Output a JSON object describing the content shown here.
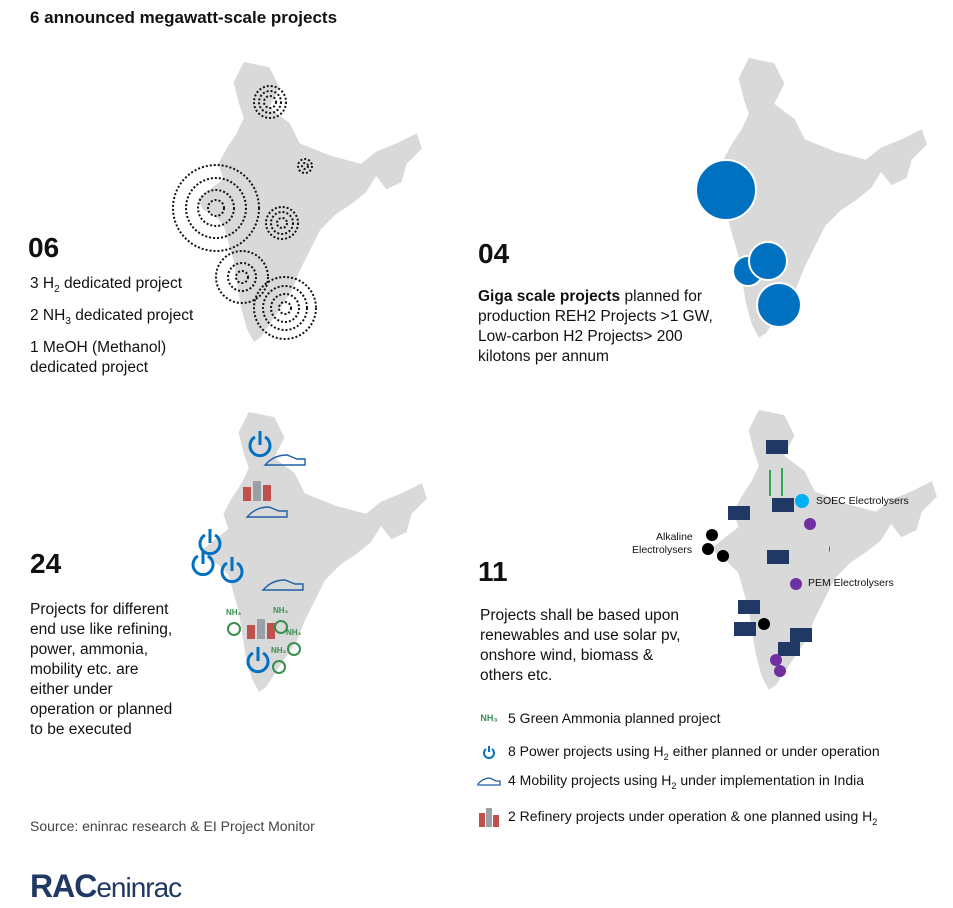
{
  "title": "6 announced megawatt-scale projects",
  "q1": {
    "count": "06",
    "line1_pre": "3 H",
    "line1_sub": "2",
    "line1_post": " dedicated project",
    "line2_pre": "2 NH",
    "line2_sub": "3",
    "line2_post": " dedicated project",
    "line3": "1 MeOH (Methanol)",
    "line4": "dedicated project"
  },
  "q2": {
    "count": "04",
    "bold": "Giga scale projects",
    "rest_1": " planned for",
    "line2": "production  REH2 Projects >1 GW,",
    "line3": "Low-carbon H2 Projects> 200",
    "line4": "kilotons per annum"
  },
  "q3": {
    "count": "24",
    "lines": [
      "Projects for different",
      "end use like refining,",
      "power, ammonia,",
      "mobility etc. are",
      "either under",
      "operation or planned",
      "to be executed"
    ]
  },
  "q4": {
    "count": "11",
    "lines": [
      "Projects shall be based upon",
      "renewables and use solar pv,",
      "onshore wind, biomass &",
      "others etc."
    ],
    "label_soec": "SOEC Electrolysers",
    "label_alk_1": "Alkaline",
    "label_alk_2": "Electrolysers",
    "label_pem": "PEM Electrolysers"
  },
  "legend": {
    "ammonia_label": "NH₃",
    "ammonia": "5 Green Ammonia planned project",
    "power_pre": "8 Power projects using H",
    "power_sub": "2",
    "power_post": " either planned or under operation",
    "mobility_pre": "4 Mobility projects using H",
    "mobility_sub": "2",
    "mobility_post": " under implementation in India",
    "refinery_pre": "2 Refinery projects under operation & one planned using H",
    "refinery_sub": "2"
  },
  "source": "Source: eninrac research & EI Project Monitor",
  "logo": {
    "a": "RAC",
    "b": "eninrac"
  },
  "colors": {
    "map": "#d9d9d9",
    "blue": "#0070c0",
    "navy": "#1f3864",
    "green": "#3a8f4f",
    "purple": "#7030a0",
    "cyan": "#00b0f0"
  }
}
